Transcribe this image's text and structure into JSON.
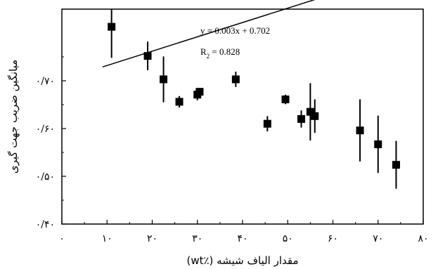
{
  "chart_data": {
    "type": "scatter",
    "xlabel": "مقدار الیاف شیشه (٪wt)",
    "ylabel": "میانگین ضریب جهت گیری",
    "xlim": [
      0,
      80
    ],
    "ylim": [
      0.4,
      0.85
    ],
    "x_ticks": [
      {
        "value": 0,
        "label": "۰"
      },
      {
        "value": 10,
        "label": "۱۰"
      },
      {
        "value": 20,
        "label": "۲۰"
      },
      {
        "value": 30,
        "label": "۳۰"
      },
      {
        "value": 40,
        "label": "۴۰"
      },
      {
        "value": 50,
        "label": "۵۰"
      },
      {
        "value": 60,
        "label": "۶۰"
      },
      {
        "value": 70,
        "label": "۷۰"
      },
      {
        "value": 80,
        "label": "۸۰"
      }
    ],
    "y_ticks": [
      {
        "value": 0.4,
        "label": "۰/۴۰"
      },
      {
        "value": 0.5,
        "label": "۰/۵۰"
      },
      {
        "value": 0.6,
        "label": "۰/۶۰"
      },
      {
        "value": 0.7,
        "label": "۰/۷۰"
      }
    ],
    "points": [
      {
        "x": 11,
        "y": 0.813,
        "err": 0.065
      },
      {
        "x": 19,
        "y": 0.752,
        "err": 0.03
      },
      {
        "x": 22.5,
        "y": 0.703,
        "err": 0.048
      },
      {
        "x": 26,
        "y": 0.656,
        "err": 0.012
      },
      {
        "x": 30,
        "y": 0.671,
        "err": 0.012
      },
      {
        "x": 30.5,
        "y": 0.677,
        "err": 0.004
      },
      {
        "x": 38.5,
        "y": 0.703,
        "err": 0.016
      },
      {
        "x": 45.5,
        "y": 0.61,
        "err": 0.016
      },
      {
        "x": 49.5,
        "y": 0.661,
        "err": 0.01
      },
      {
        "x": 53,
        "y": 0.62,
        "err": 0.018
      },
      {
        "x": 55,
        "y": 0.635,
        "err": 0.06
      },
      {
        "x": 56,
        "y": 0.626,
        "err": 0.035
      },
      {
        "x": 66,
        "y": 0.596,
        "err": 0.065
      },
      {
        "x": 70,
        "y": 0.567,
        "err": 0.06
      },
      {
        "x": 74,
        "y": 0.524,
        "err": 0.05
      }
    ],
    "fit_line": {
      "slope": 0.003,
      "intercept": 0.702,
      "x_range": [
        9,
        75.5
      ]
    },
    "equation_text": "y = 0.003x + 0.702",
    "r2_text": "R",
    "r2_sub": "2",
    "r2_value_text": " = 0.828",
    "grid": false,
    "colors": {
      "marker": "#000000",
      "line": "#000000"
    }
  }
}
